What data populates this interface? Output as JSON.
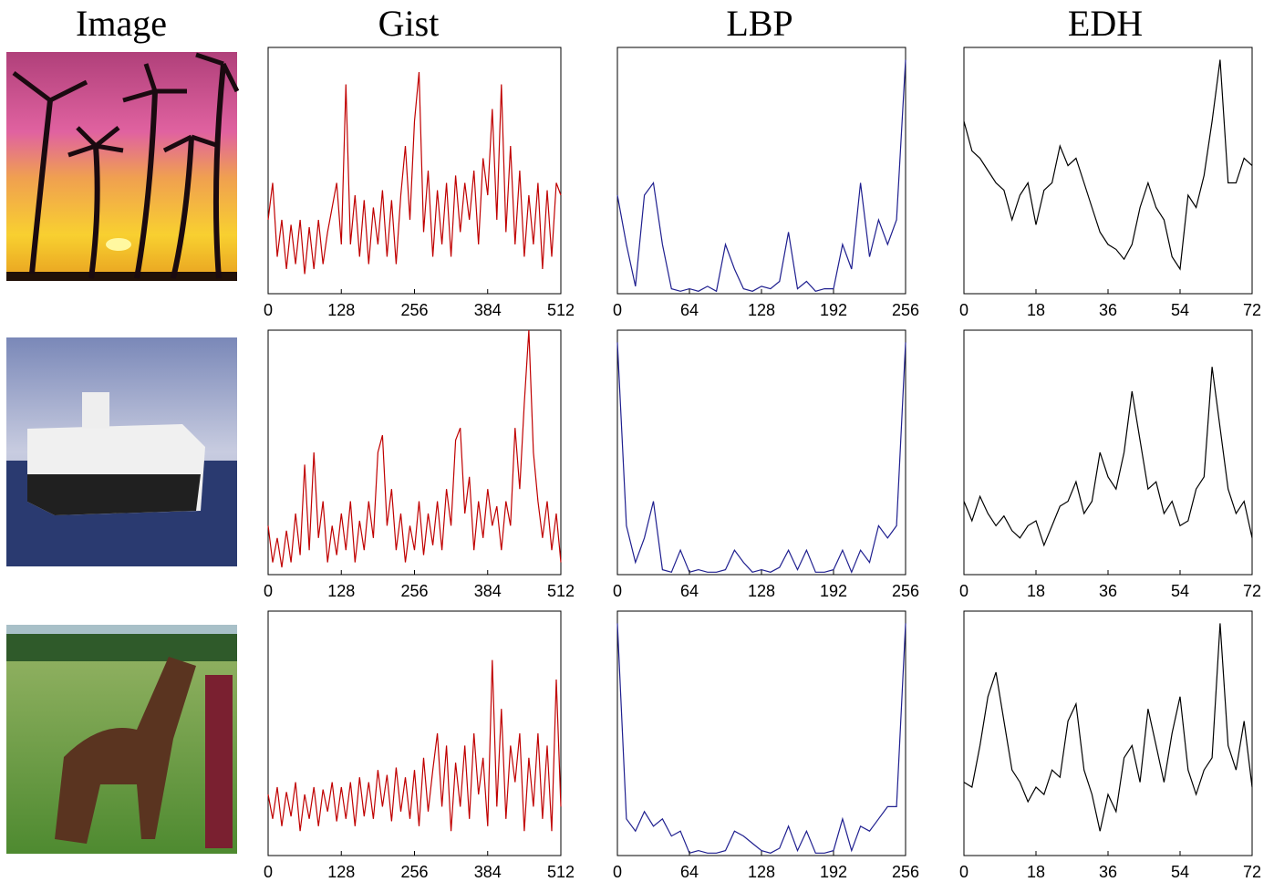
{
  "column_titles": [
    "Image",
    "Gist",
    "LBP",
    "EDH"
  ],
  "chart_data": [
    {
      "type": "line",
      "color": "#c00000",
      "xlim": [
        0,
        512
      ],
      "xticks": [
        0,
        128,
        256,
        384,
        512
      ],
      "ylim": [
        0,
        1
      ],
      "x": [
        0,
        8,
        16,
        24,
        32,
        40,
        48,
        56,
        64,
        72,
        80,
        88,
        96,
        104,
        112,
        120,
        128,
        136,
        144,
        152,
        160,
        168,
        176,
        184,
        192,
        200,
        208,
        216,
        224,
        232,
        240,
        248,
        256,
        264,
        272,
        280,
        288,
        296,
        304,
        312,
        320,
        328,
        336,
        344,
        352,
        360,
        368,
        376,
        384,
        392,
        400,
        408,
        416,
        424,
        432,
        440,
        448,
        456,
        464,
        472,
        480,
        488,
        496,
        504,
        512
      ],
      "values": [
        0.3,
        0.45,
        0.15,
        0.3,
        0.1,
        0.28,
        0.12,
        0.3,
        0.08,
        0.27,
        0.1,
        0.3,
        0.12,
        0.25,
        0.35,
        0.45,
        0.2,
        0.85,
        0.2,
        0.4,
        0.15,
        0.38,
        0.12,
        0.35,
        0.2,
        0.42,
        0.15,
        0.38,
        0.12,
        0.4,
        0.6,
        0.3,
        0.7,
        0.9,
        0.25,
        0.5,
        0.15,
        0.42,
        0.2,
        0.45,
        0.15,
        0.48,
        0.25,
        0.45,
        0.3,
        0.5,
        0.2,
        0.55,
        0.4,
        0.75,
        0.3,
        0.85,
        0.25,
        0.6,
        0.2,
        0.5,
        0.15,
        0.4,
        0.2,
        0.45,
        0.1,
        0.42,
        0.15,
        0.45,
        0.4
      ]
    },
    {
      "type": "line",
      "color": "#1f1f8f",
      "xlim": [
        0,
        256
      ],
      "xticks": [
        0,
        64,
        128,
        192,
        256
      ],
      "ylim": [
        0,
        1
      ],
      "x": [
        0,
        8,
        16,
        24,
        32,
        40,
        48,
        56,
        64,
        72,
        80,
        88,
        96,
        104,
        112,
        120,
        128,
        136,
        144,
        152,
        160,
        168,
        176,
        184,
        192,
        200,
        208,
        216,
        224,
        232,
        240,
        248,
        256
      ],
      "values": [
        0.4,
        0.2,
        0.03,
        0.4,
        0.45,
        0.2,
        0.02,
        0.01,
        0.02,
        0.01,
        0.03,
        0.01,
        0.2,
        0.1,
        0.02,
        0.01,
        0.03,
        0.02,
        0.05,
        0.25,
        0.02,
        0.05,
        0.01,
        0.02,
        0.02,
        0.2,
        0.1,
        0.45,
        0.15,
        0.3,
        0.2,
        0.3,
        0.95
      ]
    },
    {
      "type": "line",
      "color": "#000000",
      "xlim": [
        0,
        72
      ],
      "xticks": [
        0,
        18,
        36,
        54,
        72
      ],
      "ylim": [
        0,
        1
      ],
      "x": [
        0,
        2,
        4,
        6,
        8,
        10,
        12,
        14,
        16,
        18,
        20,
        22,
        24,
        26,
        28,
        30,
        32,
        34,
        36,
        38,
        40,
        42,
        44,
        46,
        48,
        50,
        52,
        54,
        56,
        58,
        60,
        62,
        64,
        66,
        68,
        70,
        72
      ],
      "values": [
        0.7,
        0.58,
        0.55,
        0.5,
        0.45,
        0.42,
        0.3,
        0.4,
        0.45,
        0.28,
        0.42,
        0.45,
        0.6,
        0.52,
        0.55,
        0.45,
        0.35,
        0.25,
        0.2,
        0.18,
        0.14,
        0.2,
        0.35,
        0.45,
        0.35,
        0.3,
        0.15,
        0.1,
        0.4,
        0.35,
        0.48,
        0.7,
        0.95,
        0.45,
        0.45,
        0.55,
        0.52
      ]
    },
    {
      "type": "line",
      "color": "#c00000",
      "xlim": [
        0,
        512
      ],
      "xticks": [
        0,
        128,
        256,
        384,
        512
      ],
      "ylim": [
        0,
        1
      ],
      "x": [
        0,
        8,
        16,
        24,
        32,
        40,
        48,
        56,
        64,
        72,
        80,
        88,
        96,
        104,
        112,
        120,
        128,
        136,
        144,
        152,
        160,
        168,
        176,
        184,
        192,
        200,
        208,
        216,
        224,
        232,
        240,
        248,
        256,
        264,
        272,
        280,
        288,
        296,
        304,
        312,
        320,
        328,
        336,
        344,
        352,
        360,
        368,
        376,
        384,
        392,
        400,
        408,
        416,
        424,
        432,
        440,
        448,
        456,
        464,
        472,
        480,
        488,
        496,
        504,
        512
      ],
      "values": [
        0.2,
        0.05,
        0.15,
        0.03,
        0.18,
        0.05,
        0.25,
        0.08,
        0.45,
        0.1,
        0.5,
        0.15,
        0.3,
        0.05,
        0.2,
        0.08,
        0.25,
        0.1,
        0.3,
        0.05,
        0.22,
        0.1,
        0.3,
        0.15,
        0.5,
        0.57,
        0.2,
        0.35,
        0.1,
        0.25,
        0.05,
        0.2,
        0.1,
        0.3,
        0.08,
        0.25,
        0.12,
        0.3,
        0.1,
        0.35,
        0.2,
        0.55,
        0.6,
        0.25,
        0.4,
        0.1,
        0.3,
        0.15,
        0.35,
        0.2,
        0.28,
        0.1,
        0.3,
        0.2,
        0.6,
        0.35,
        0.7,
        1.0,
        0.5,
        0.3,
        0.15,
        0.3,
        0.1,
        0.25,
        0.05
      ]
    },
    {
      "type": "line",
      "color": "#1f1f8f",
      "xlim": [
        0,
        256
      ],
      "xticks": [
        0,
        64,
        128,
        192,
        256
      ],
      "ylim": [
        0,
        1
      ],
      "x": [
        0,
        8,
        16,
        24,
        32,
        40,
        48,
        56,
        64,
        72,
        80,
        88,
        96,
        104,
        112,
        120,
        128,
        136,
        144,
        152,
        160,
        168,
        176,
        184,
        192,
        200,
        208,
        216,
        224,
        232,
        240,
        248,
        256
      ],
      "values": [
        0.95,
        0.2,
        0.05,
        0.15,
        0.3,
        0.02,
        0.01,
        0.1,
        0.01,
        0.02,
        0.01,
        0.01,
        0.02,
        0.1,
        0.05,
        0.01,
        0.02,
        0.01,
        0.03,
        0.1,
        0.02,
        0.1,
        0.01,
        0.01,
        0.02,
        0.1,
        0.01,
        0.1,
        0.05,
        0.2,
        0.15,
        0.2,
        0.95
      ]
    },
    {
      "type": "line",
      "color": "#000000",
      "xlim": [
        0,
        72
      ],
      "xticks": [
        0,
        18,
        36,
        54,
        72
      ],
      "ylim": [
        0,
        1
      ],
      "x": [
        0,
        2,
        4,
        6,
        8,
        10,
        12,
        14,
        16,
        18,
        20,
        22,
        24,
        26,
        28,
        30,
        32,
        34,
        36,
        38,
        40,
        42,
        44,
        46,
        48,
        50,
        52,
        54,
        56,
        58,
        60,
        62,
        64,
        66,
        68,
        70,
        72
      ],
      "values": [
        0.3,
        0.22,
        0.32,
        0.25,
        0.2,
        0.24,
        0.18,
        0.15,
        0.2,
        0.22,
        0.12,
        0.2,
        0.28,
        0.3,
        0.38,
        0.25,
        0.3,
        0.5,
        0.4,
        0.35,
        0.5,
        0.75,
        0.55,
        0.35,
        0.38,
        0.25,
        0.3,
        0.2,
        0.22,
        0.35,
        0.4,
        0.85,
        0.6,
        0.35,
        0.25,
        0.3,
        0.15
      ]
    },
    {
      "type": "line",
      "color": "#c00000",
      "xlim": [
        0,
        512
      ],
      "xticks": [
        0,
        128,
        256,
        384,
        512
      ],
      "ylim": [
        0,
        1
      ],
      "x": [
        0,
        8,
        16,
        24,
        32,
        40,
        48,
        56,
        64,
        72,
        80,
        88,
        96,
        104,
        112,
        120,
        128,
        136,
        144,
        152,
        160,
        168,
        176,
        184,
        192,
        200,
        208,
        216,
        224,
        232,
        240,
        248,
        256,
        264,
        272,
        280,
        288,
        296,
        304,
        312,
        320,
        328,
        336,
        344,
        352,
        360,
        368,
        376,
        384,
        392,
        400,
        408,
        416,
        424,
        432,
        440,
        448,
        456,
        464,
        472,
        480,
        488,
        496,
        504,
        512
      ],
      "values": [
        0.25,
        0.15,
        0.28,
        0.12,
        0.26,
        0.16,
        0.3,
        0.1,
        0.25,
        0.15,
        0.28,
        0.12,
        0.27,
        0.18,
        0.3,
        0.14,
        0.28,
        0.15,
        0.3,
        0.12,
        0.32,
        0.16,
        0.3,
        0.15,
        0.35,
        0.2,
        0.33,
        0.14,
        0.36,
        0.18,
        0.32,
        0.15,
        0.35,
        0.12,
        0.4,
        0.18,
        0.35,
        0.5,
        0.2,
        0.45,
        0.1,
        0.38,
        0.2,
        0.45,
        0.15,
        0.5,
        0.25,
        0.4,
        0.12,
        0.8,
        0.2,
        0.6,
        0.15,
        0.45,
        0.3,
        0.5,
        0.1,
        0.4,
        0.2,
        0.5,
        0.15,
        0.45,
        0.1,
        0.72,
        0.2
      ]
    },
    {
      "type": "line",
      "color": "#1f1f8f",
      "xlim": [
        0,
        256
      ],
      "xticks": [
        0,
        64,
        128,
        192,
        256
      ],
      "ylim": [
        0,
        1
      ],
      "x": [
        0,
        8,
        16,
        24,
        32,
        40,
        48,
        56,
        64,
        72,
        80,
        88,
        96,
        104,
        112,
        120,
        128,
        136,
        144,
        152,
        160,
        168,
        176,
        184,
        192,
        200,
        208,
        216,
        224,
        232,
        240,
        248,
        256
      ],
      "values": [
        0.95,
        0.15,
        0.1,
        0.18,
        0.12,
        0.15,
        0.08,
        0.1,
        0.01,
        0.02,
        0.01,
        0.01,
        0.02,
        0.1,
        0.08,
        0.05,
        0.02,
        0.01,
        0.03,
        0.12,
        0.02,
        0.1,
        0.01,
        0.01,
        0.02,
        0.15,
        0.02,
        0.12,
        0.1,
        0.15,
        0.2,
        0.2,
        0.95
      ]
    },
    {
      "type": "line",
      "color": "#000000",
      "xlim": [
        0,
        72
      ],
      "xticks": [
        0,
        18,
        36,
        54,
        72
      ],
      "ylim": [
        0,
        1
      ],
      "x": [
        0,
        2,
        4,
        6,
        8,
        10,
        12,
        14,
        16,
        18,
        20,
        22,
        24,
        26,
        28,
        30,
        32,
        34,
        36,
        38,
        40,
        42,
        44,
        46,
        48,
        50,
        52,
        54,
        56,
        58,
        60,
        62,
        64,
        66,
        68,
        70,
        72
      ],
      "values": [
        0.3,
        0.28,
        0.45,
        0.65,
        0.75,
        0.55,
        0.35,
        0.3,
        0.22,
        0.28,
        0.25,
        0.35,
        0.32,
        0.55,
        0.62,
        0.35,
        0.25,
        0.1,
        0.25,
        0.18,
        0.4,
        0.45,
        0.3,
        0.6,
        0.45,
        0.3,
        0.5,
        0.65,
        0.35,
        0.25,
        0.35,
        0.4,
        0.95,
        0.45,
        0.35,
        0.55,
        0.28
      ]
    }
  ]
}
